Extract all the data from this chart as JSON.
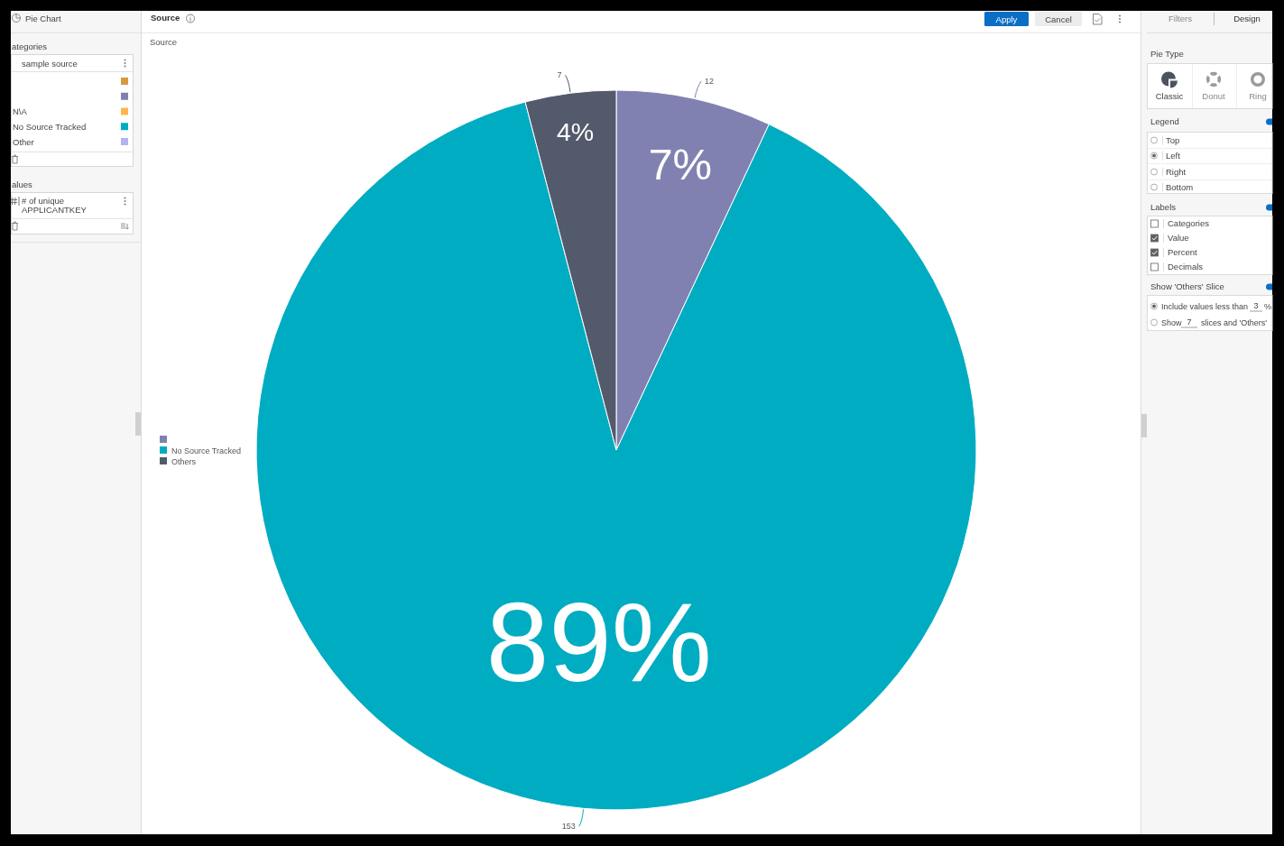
{
  "chart_data": [
    {
      "type": "other",
      "title": "Pie Chart",
      "annotations": [
        "ategories",
        "sample source",
        "N\\A",
        "No Source Tracked",
        "Other",
        "alues",
        "# of unique APPLICANTKEY"
      ],
      "colors": [
        "#d59a41",
        "#8181b1",
        "#ffb54a",
        "#00acc1",
        "#b3b3f2"
      ]
    },
    {
      "type": "pie",
      "title": "Source",
      "subtitle": "Source",
      "categories": [
        null,
        "No Source Tracked",
        "Others"
      ],
      "values": [
        12,
        153,
        7
      ],
      "colors": [
        "#8181b1",
        "#00acc1",
        "#535a6c"
      ],
      "data_labels": true,
      "legend": "left",
      "annotations": [
        "7%",
        "89%",
        "4%"
      ]
    },
    {
      "type": "other",
      "annotations": [
        "Apply",
        "Cancel"
      ]
    },
    {
      "type": "other",
      "annotations": [
        "Filters",
        "Design",
        "Pie Type",
        "Classic",
        "Donut",
        "Ring",
        "Legend",
        "Top",
        "Left",
        "Right",
        "Bottom",
        "Labels",
        "Categories",
        "Value",
        "Percent",
        "Decimals",
        "Show 'Others' Slice",
        "Include values less than",
        "3",
        "%",
        "Show",
        "7",
        "slices and 'Others'"
      ]
    }
  ]
}
